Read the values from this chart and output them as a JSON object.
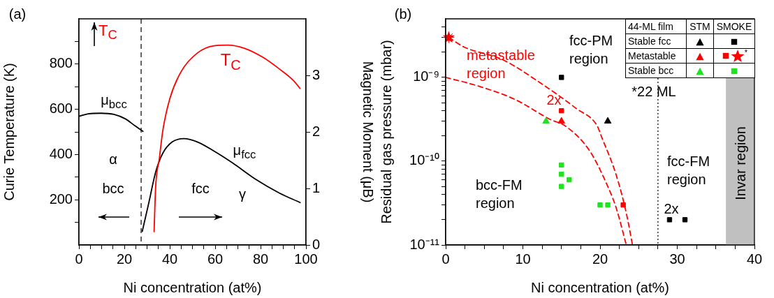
{
  "chart_data": [
    {
      "type": "line",
      "xlabel": "Ni concentration (at%)",
      "ylabel": "Curie Temperature (K)",
      "y2label": "Magnetic Moment (μB)",
      "xlim": [
        0,
        100
      ],
      "xticks": [
        0,
        {
          "value": 5,
          "label": null
        },
        {
          "value": 10,
          "label": null
        },
        {
          "value": 15,
          "label": null
        },
        20,
        {
          "value": 25,
          "label": null
        },
        {
          "value": 30,
          "label": null
        },
        {
          "value": 35,
          "label": null
        },
        40,
        {
          "value": 45,
          "label": null
        },
        {
          "value": 50,
          "label": null
        },
        {
          "value": 55,
          "label": null
        },
        60,
        {
          "value": 65,
          "label": null
        },
        {
          "value": 70,
          "label": null
        },
        {
          "value": 75,
          "label": null
        },
        80,
        {
          "value": 85,
          "label": null
        },
        {
          "value": 90,
          "label": null
        },
        {
          "value": 95,
          "label": null
        },
        100
      ],
      "ylim": [
        0,
        1000
      ],
      "yticks": [
        {
          "value": 100,
          "label": null
        },
        200,
        {
          "value": 300,
          "label": null
        },
        400,
        {
          "value": 500,
          "label": null
        },
        600,
        {
          "value": 700,
          "label": null
        },
        800,
        {
          "value": 900,
          "label": null
        }
      ],
      "y2lim": [
        0,
        4
      ],
      "y2ticks": [
        0,
        1,
        2,
        3
      ],
      "marker": "none",
      "series": [
        {
          "name": "T$_{C}$",
          "color": "#ff0000",
          "x": [
            33.1,
            33.8,
            35.4,
            36.9,
            40,
            45.1,
            52.3,
            59.5,
            65.6,
            72.8,
            81,
            88.2,
            94.4,
            97.4
          ],
          "values": [
            59,
            258,
            381,
            503,
            646,
            768,
            850,
            881,
            884,
            870,
            830,
            779,
            728,
            692
          ]
        },
        {
          "name": "μ$_{bcc}$",
          "color": "#000000",
          "axis": "y2",
          "x": [
            0.3,
            4.1,
            9.7,
            15.4,
            20.5,
            24.6,
            28.2
          ],
          "values": [
            2.28,
            2.32,
            2.33,
            2.31,
            2.23,
            2.11,
            2.01
          ]
        },
        {
          "name": "μ$_{fcc}$",
          "color": "#000000",
          "axis": "y2",
          "x": [
            27.9,
            30.8,
            33.8,
            36.9,
            41,
            46.2,
            52.3,
            59.5,
            67.7,
            77.9,
            88.2,
            97.4
          ],
          "values": [
            0.24,
            0.75,
            1.29,
            1.62,
            1.82,
            1.88,
            1.82,
            1.66,
            1.45,
            1.16,
            0.92,
            0.75
          ]
        }
      ],
      "ref_lines": [
        {
          "axis": "x",
          "value": 27.4,
          "color": "#000000",
          "line_style": "dashed"
        }
      ],
      "annotations": [
        "(a)",
        "T$_{C}$",
        "α",
        "bcc",
        "fcc",
        "γ"
      ]
    },
    {
      "type": "scatter",
      "xlabel": "Ni concentration (at%)",
      "ylabel": "Residual gas pressure (mbar)",
      "log": "y",
      "xlim": [
        0,
        40
      ],
      "xticks": [
        0,
        {
          "value": 2.5,
          "label": null
        },
        {
          "value": 5,
          "label": null
        },
        {
          "value": 7.5,
          "label": null
        },
        10,
        {
          "value": 12.5,
          "label": null
        },
        {
          "value": 15,
          "label": null
        },
        {
          "value": 17.5,
          "label": null
        },
        20,
        {
          "value": 22.5,
          "label": null
        },
        {
          "value": 25,
          "label": null
        },
        {
          "value": 27.5,
          "label": null
        },
        30,
        {
          "value": 32.5,
          "label": null
        },
        {
          "value": 35,
          "label": null
        },
        {
          "value": 37.5,
          "label": null
        },
        40
      ],
      "ylim": [
        1e-11,
        5e-09
      ],
      "yticks": [
        {
          "value": 1e-11,
          "label": "10⁻¹¹"
        },
        {
          "value": 2e-11,
          "label": null
        },
        {
          "value": 3e-11,
          "label": null
        },
        {
          "value": 4e-11,
          "label": null
        },
        {
          "value": 5e-11,
          "label": null
        },
        {
          "value": 6e-11,
          "label": null
        },
        {
          "value": 7e-11,
          "label": null
        },
        {
          "value": 8e-11,
          "label": null
        },
        {
          "value": 9e-11,
          "label": null
        },
        {
          "value": 1e-10,
          "label": "10⁻¹⁰"
        },
        {
          "value": 2e-10,
          "label": null
        },
        {
          "value": 3e-10,
          "label": null
        },
        {
          "value": 4e-10,
          "label": null
        },
        {
          "value": 5e-10,
          "label": null
        },
        {
          "value": 6e-10,
          "label": null
        },
        {
          "value": 7e-10,
          "label": null
        },
        {
          "value": 8e-10,
          "label": null
        },
        {
          "value": 9e-10,
          "label": null
        },
        {
          "value": 1e-09,
          "label": "10⁻⁹"
        },
        {
          "value": 2e-09,
          "label": null
        },
        {
          "value": 3e-09,
          "label": null
        },
        {
          "value": 4e-09,
          "label": null
        }
      ],
      "series": [
        {
          "color": "#000000",
          "marker": "triangle",
          "x": [
            21
          ],
          "values": [
            3e-10
          ]
        },
        {
          "color": "#000000",
          "marker": "square",
          "x": [
            15,
            29,
            31
          ],
          "values": [
            1e-09,
            2e-11,
            2e-11
          ]
        },
        {
          "color": "#ff0000",
          "marker": "triangle",
          "x": [
            15
          ],
          "values": [
            3e-10
          ]
        },
        {
          "color": "#ff0000",
          "marker": "square",
          "x": [
            15,
            23
          ],
          "values": [
            4e-10,
            3e-11
          ]
        },
        {
          "color": "#ff0000",
          "marker": "star",
          "x": [
            0.4
          ],
          "values": [
            3e-09
          ]
        },
        {
          "color": "#22e022",
          "marker": "triangle",
          "x": [
            13
          ],
          "values": [
            3e-10
          ]
        },
        {
          "color": "#22e022",
          "marker": "square",
          "x": [
            15,
            15,
            16,
            15,
            20,
            21
          ],
          "values": [
            9e-11,
            7e-11,
            6e-11,
            5e-11,
            3e-11,
            3e-11
          ]
        },
        {
          "type": "line",
          "color": "#ff0000",
          "marker": "none",
          "line_style": "dashed",
          "x": [
            0.4,
            2.4,
            7.3,
            12.1,
            17,
            19.6,
            20.2,
            22.1,
            23.4,
            24.2
          ],
          "values": [
            3e-09,
            2.3e-09,
            1.64e-09,
            8.8e-10,
            4.2e-10,
            2.67e-10,
            1.95e-10,
            6.8e-11,
            2.4e-11,
            1e-11
          ]
        },
        {
          "type": "line",
          "color": "#ff0000",
          "marker": "none",
          "line_style": "dashed",
          "x": [
            0,
            4,
            8.9,
            13.7,
            15.4,
            18.6,
            20.8,
            22.1,
            23.4
          ],
          "values": [
            1e-09,
            8e-10,
            5.5e-10,
            3.1e-10,
            2.67e-10,
            1.35e-10,
            5.5e-11,
            2.75e-11,
            1e-11
          ]
        }
      ],
      "ref_lines": [
        {
          "axis": "x",
          "value": 27.5,
          "color": "#000000",
          "line_style": "dotted"
        }
      ],
      "bands": [
        {
          "axis": "x",
          "from": 36.3,
          "to": 40,
          "label": "Invar region",
          "color": "#c0c0c0"
        }
      ],
      "annotations": [
        "(b)",
        "metastable region",
        "fcc-PM region",
        "2x",
        "*22 ML",
        "fcc-FM region",
        "bcc-FM region",
        "2x",
        "44-ML film",
        "STM",
        "SMOKE",
        "Stable fcc",
        "Metastable",
        "Stable bcc",
        "*"
      ]
    }
  ]
}
